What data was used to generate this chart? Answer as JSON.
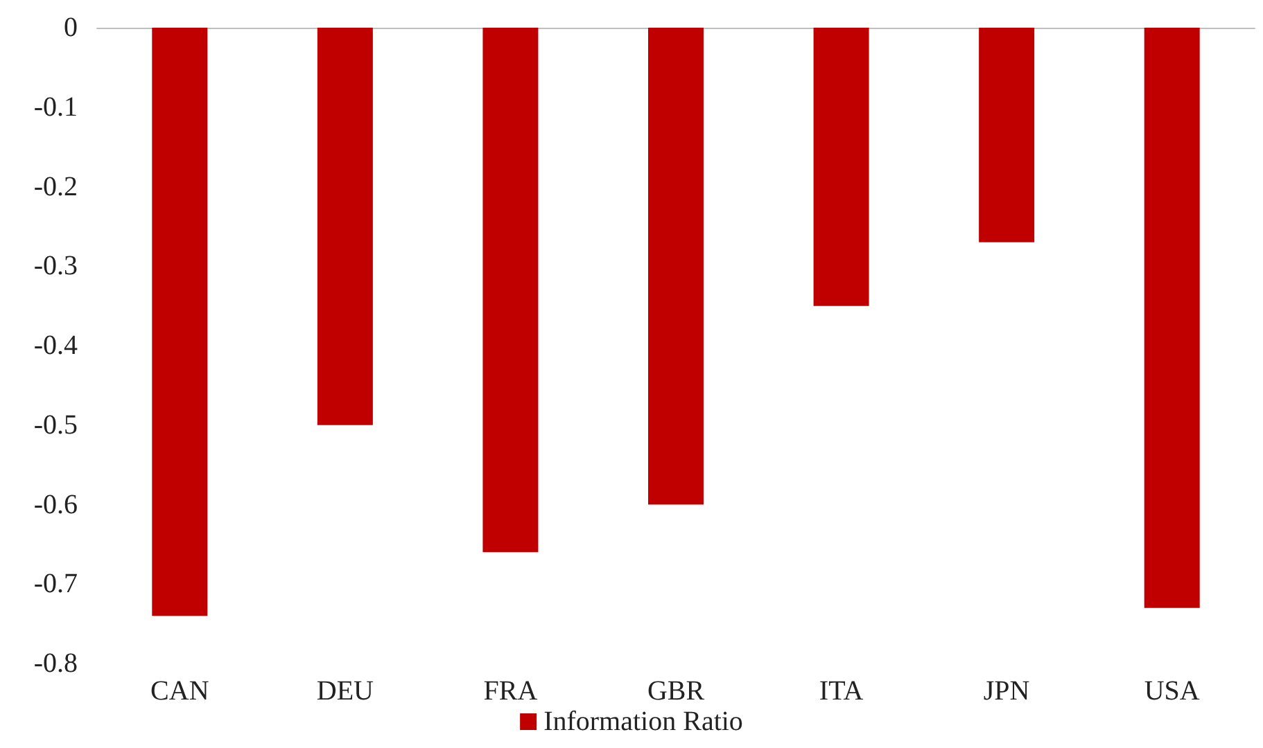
{
  "chart_data": {
    "type": "bar",
    "categories": [
      "CAN",
      "DEU",
      "FRA",
      "GBR",
      "ITA",
      "JPN",
      "USA"
    ],
    "series": [
      {
        "name": "Information Ratio",
        "color": "#c00000",
        "values": [
          -0.74,
          -0.5,
          -0.66,
          -0.6,
          -0.35,
          -0.27,
          -0.73
        ]
      }
    ],
    "ylim": [
      -0.8,
      0
    ],
    "yticks": [
      -0.8,
      -0.7,
      -0.6,
      -0.5,
      -0.4,
      -0.3,
      -0.2,
      -0.1,
      0
    ],
    "grid": false,
    "legend": "bottom"
  }
}
